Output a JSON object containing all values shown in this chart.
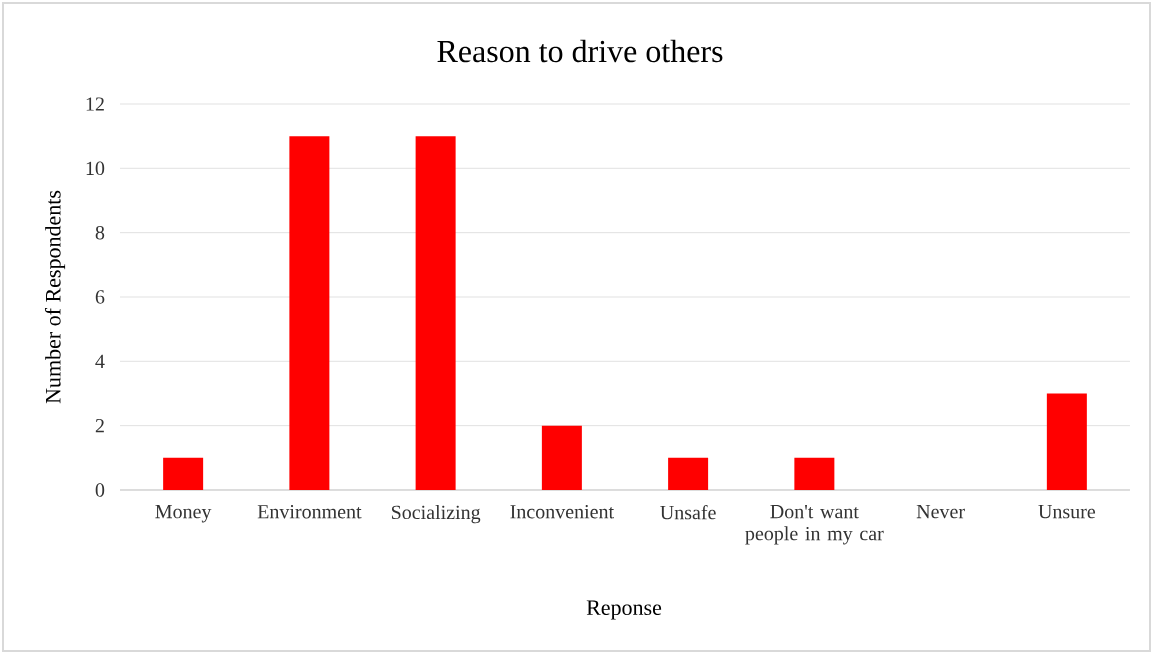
{
  "chart_data": {
    "type": "bar",
    "title": "Reason to drive others",
    "xlabel": "Reponse",
    "ylabel": "Number of Respondents",
    "categories": [
      "Money",
      "Environment",
      "Socializing",
      "Inconvenient",
      "Unsafe",
      "Don't want people in my car",
      "Never",
      "Unsure"
    ],
    "values": [
      1,
      11,
      11,
      2,
      1,
      1,
      0,
      3
    ],
    "color": "#ff0000",
    "ylim": [
      0,
      12
    ],
    "yticks": [
      0,
      2,
      4,
      6,
      8,
      10,
      12
    ],
    "grid": "y"
  }
}
